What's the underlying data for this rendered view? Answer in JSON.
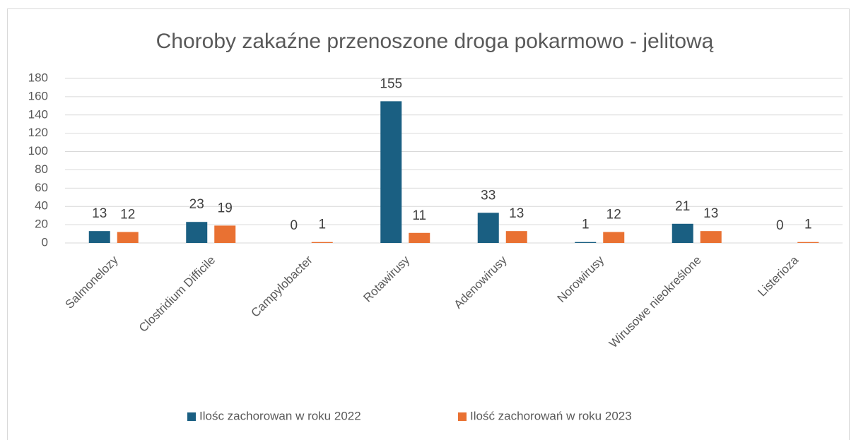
{
  "chart_data": {
    "type": "bar",
    "title": "Choroby zakaźne przenoszone droga pokarmowo - jelitową",
    "categories": [
      "Salmonelozy",
      "Clostridium Difficile",
      "Campylobacter",
      "Rotawirusy",
      "Adenowirusy",
      "Norowirusy",
      "Wirusowe nieokreślone",
      "Listerioza"
    ],
    "series": [
      {
        "name": "Ilośc zachorowan w roku 2022",
        "color": "#1a5f82",
        "values": [
          13,
          23,
          0,
          155,
          33,
          1,
          21,
          0
        ]
      },
      {
        "name": "Ilość zachorowań w roku 2023",
        "color": "#e97132",
        "values": [
          12,
          19,
          1,
          11,
          13,
          12,
          13,
          1
        ]
      }
    ],
    "ylim": [
      0,
      180
    ],
    "yticks": [
      0,
      20,
      40,
      60,
      80,
      100,
      120,
      140,
      160,
      180
    ],
    "grid": true,
    "legend": "bottom"
  }
}
